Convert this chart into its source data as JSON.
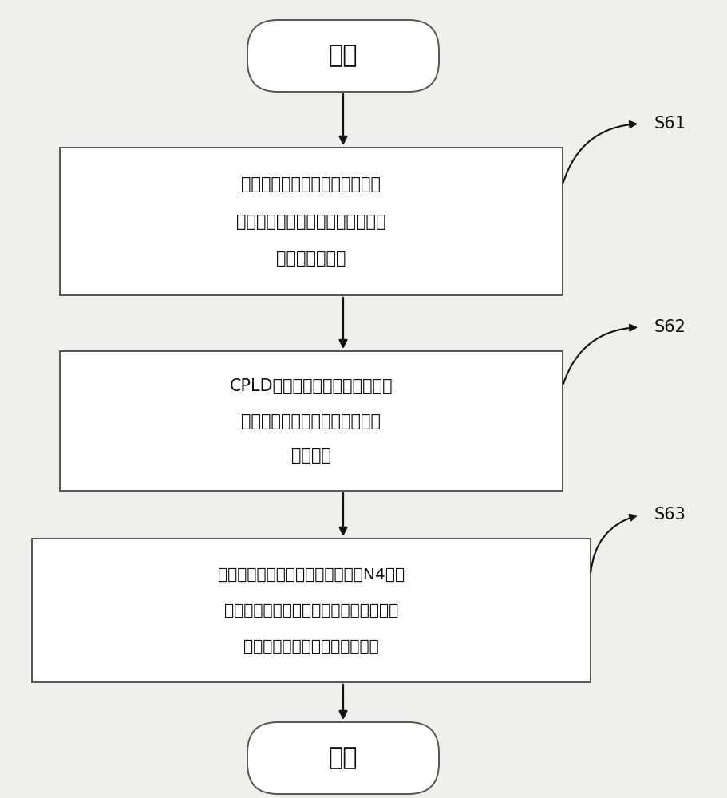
{
  "bg_color": "#f0efeb",
  "box_color": "#ffffff",
  "box_edge_color": "#555555",
  "text_color": "#111111",
  "arrow_color": "#111111",
  "label_color": "#111111",
  "start_text": "开始",
  "end_text": "结束",
  "box1_line1": "电源监控模块对电源电压实时监",
  "box1_line2": "控，于电源电压异常时输出系统电",
  "box1_line3": "源电压异常标志",
  "box2_line1": "CPLD监测到电源电压异常，切断",
  "box2_line2": "嵌入式系统供电电路，保护嵌入",
  "box2_line3": "式处理器",
  "box3_line1": "定期对电源电压进行检测，若连续N4次检",
  "box3_line2": "测到电源电压正常后，开启嵌入式系统的",
  "box3_line3": "供电电路，嵌入式系统重新上电",
  "label1": "S61",
  "label2": "S62",
  "label3": "S63",
  "fig_width": 9.12,
  "fig_height": 10.0
}
